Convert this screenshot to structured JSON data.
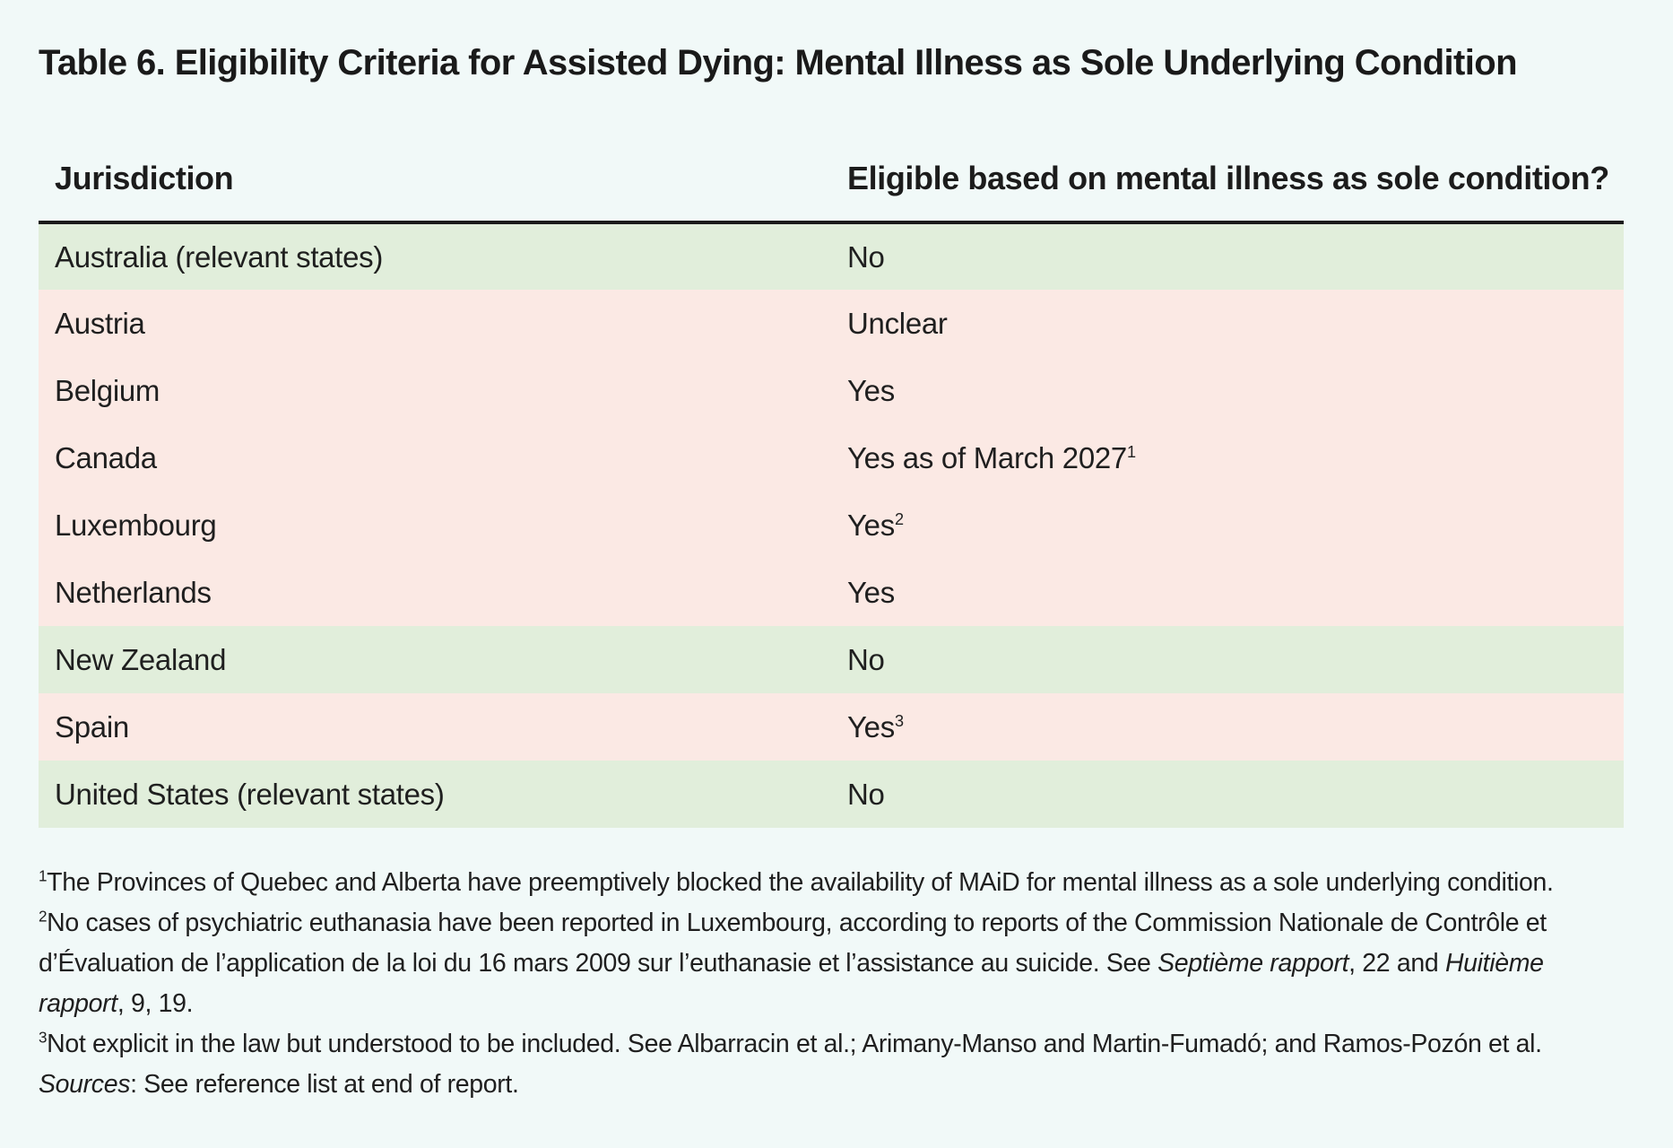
{
  "title": "Table 6. Eligibility Criteria for Assisted Dying: Mental Illness as Sole Underlying Condition",
  "table": {
    "headers": [
      "Jurisdiction",
      "Eligible based on mental illness as sole condition?"
    ],
    "rows": [
      {
        "jurisdiction": "Australia (relevant states)",
        "eligible": "No",
        "note": "",
        "color": "#e1eedb"
      },
      {
        "jurisdiction": "Austria",
        "eligible": "Unclear",
        "note": "",
        "color": "#fbe9e4"
      },
      {
        "jurisdiction": "Belgium",
        "eligible": "Yes",
        "note": "",
        "color": "#fbe9e4"
      },
      {
        "jurisdiction": "Canada",
        "eligible": "Yes as of March 2027",
        "note": "1",
        "color": "#fbe9e4"
      },
      {
        "jurisdiction": "Luxembourg",
        "eligible": "Yes",
        "note": "2",
        "color": "#fbe9e4"
      },
      {
        "jurisdiction": "Netherlands",
        "eligible": "Yes",
        "note": "",
        "color": "#fbe9e4"
      },
      {
        "jurisdiction": "New Zealand",
        "eligible": "No",
        "note": "",
        "color": "#e1eedb"
      },
      {
        "jurisdiction": "Spain",
        "eligible": "Yes",
        "note": "3",
        "color": "#fbe9e4"
      },
      {
        "jurisdiction": "United States (relevant states)",
        "eligible": "No",
        "note": "",
        "color": "#e1eedb"
      }
    ]
  },
  "footnotes": {
    "n1": {
      "mark": "1",
      "text": "The Provinces of Quebec and Alberta have preemptively blocked the availability of MAiD for mental illness as a sole underlying condition."
    },
    "n2": {
      "mark": "2",
      "text_a": "No cases of psychiatric euthanasia have been reported in Luxembourg, according to reports of the Commission Nationale de Contrôle et d’Évaluation de l’application de la loi du 16 mars 2009 sur l’euthanasie et l’assistance au suicide. See ",
      "italic_a": "Septième rapport",
      "text_b": ", 22 and ",
      "italic_b": "Huitième rapport",
      "text_c": ", 9, 19."
    },
    "n3": {
      "mark": "3",
      "text": "Not explicit in the law but understood to be included. See Albarracin et al.; Arimany-Manso and Martin-Fumadó; and Ramos-Pozón et al."
    },
    "sources": {
      "label": "Sources",
      "text": ": See reference list at end of report."
    }
  }
}
